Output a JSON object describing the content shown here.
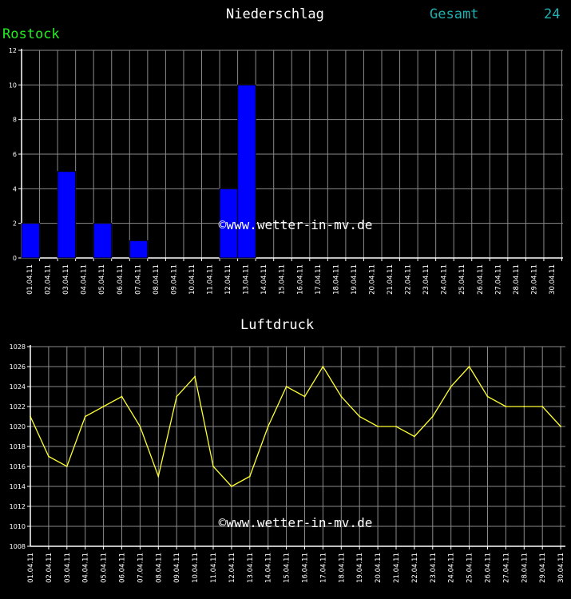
{
  "header": {
    "title": "Niederschlag",
    "gesamt_label": "Gesamt",
    "gesamt_value": "24",
    "station": "Rostock"
  },
  "watermark": "©www.wetter-in-mv.de",
  "colors": {
    "background": "#000000",
    "grid": "#8a8a8a",
    "bar": "#0000ff",
    "line": "#ffff33",
    "station": "#22ee22",
    "gesamt": "#20b0b0"
  },
  "chart_data": [
    {
      "type": "bar",
      "title": "Niederschlag",
      "categories": [
        "01.04.11",
        "02.04.11",
        "03.04.11",
        "04.04.11",
        "05.04.11",
        "06.04.11",
        "07.04.11",
        "08.04.11",
        "09.04.11",
        "10.04.11",
        "11.04.11",
        "12.04.11",
        "13.04.11",
        "14.04.11",
        "15.04.11",
        "16.04.11",
        "17.04.11",
        "18.04.11",
        "19.04.11",
        "20.04.11",
        "21.04.11",
        "22.04.11",
        "23.04.11",
        "24.04.11",
        "25.04.11",
        "26.04.11",
        "27.04.11",
        "28.04.11",
        "29.04.11",
        "30.04.11"
      ],
      "values": [
        2,
        0,
        5,
        0,
        2,
        0,
        1,
        0,
        0,
        0,
        0,
        4,
        10,
        0,
        0,
        0,
        0,
        0,
        0,
        0,
        0,
        0,
        0,
        0,
        0,
        0,
        0,
        0,
        0,
        0
      ],
      "ylim": [
        0,
        12
      ],
      "yticks": [
        0,
        2,
        4,
        6,
        8,
        10,
        12
      ],
      "grid": true
    },
    {
      "type": "line",
      "title": "Luftdruck",
      "categories": [
        "01.04.11",
        "02.04.11",
        "03.04.11",
        "04.04.11",
        "05.04.11",
        "06.04.11",
        "07.04.11",
        "08.04.11",
        "09.04.11",
        "10.04.11",
        "11.04.11",
        "12.04.11",
        "13.04.11",
        "14.04.11",
        "15.04.11",
        "16.04.11",
        "17.04.11",
        "18.04.11",
        "19.04.11",
        "20.04.11",
        "21.04.11",
        "22.04.11",
        "23.04.11",
        "24.04.11",
        "25.04.11",
        "26.04.11",
        "27.04.11",
        "28.04.11",
        "29.04.11",
        "30.04.11"
      ],
      "values": [
        1021,
        1017,
        1016,
        1021,
        1022,
        1023,
        1020,
        1015,
        1023,
        1025,
        1016,
        1014,
        1015,
        1020,
        1024,
        1023,
        1026,
        1023,
        1021,
        1020,
        1020,
        1019,
        1021,
        1024,
        1026,
        1023,
        1022,
        1022,
        1022,
        1020
      ],
      "ylim": [
        1008,
        1028
      ],
      "yticks": [
        1008,
        1010,
        1012,
        1014,
        1016,
        1018,
        1020,
        1022,
        1024,
        1026,
        1028
      ],
      "grid": true
    }
  ]
}
